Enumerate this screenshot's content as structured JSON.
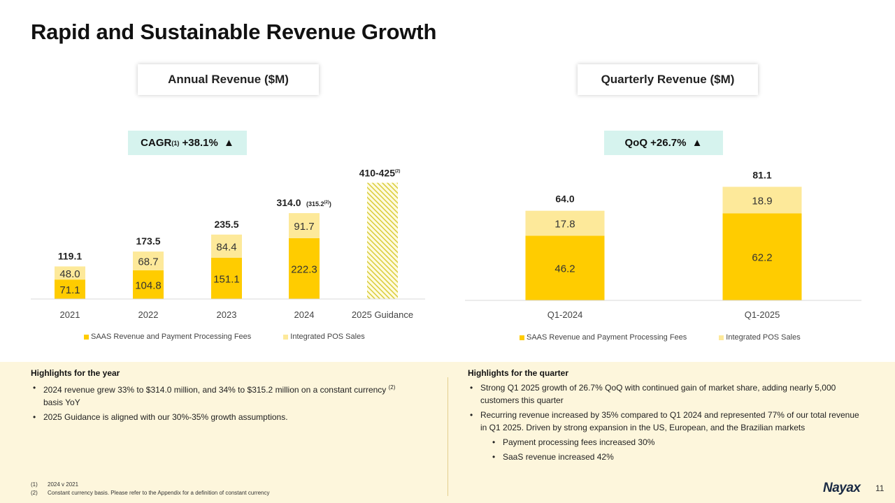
{
  "slide": {
    "title": "Rapid and Sustainable Revenue Growth",
    "page_number": "11",
    "logo_text": "Nayax"
  },
  "annual": {
    "label": "Annual Revenue ($M)",
    "badge": {
      "prefix": "CAGR",
      "sup": "(1)",
      "value": " +38.1% ",
      "arrow": "▲"
    },
    "notes": {
      "2024_extra": "(315.2",
      "2024_extra_sup": "(2)",
      "2024_extra_close": ")",
      "guidance_sup": "(2)"
    }
  },
  "quarterly": {
    "label": "Quarterly Revenue ($M)",
    "badge": {
      "text": "QoQ +26.7% ",
      "arrow": "▲"
    }
  },
  "colors": {
    "saas": "#FFCC00",
    "pos": "#FDE99A",
    "guidance_hatch": "#d9cc3a",
    "badge_bg": "#d6f3ee",
    "panel_bg": "#fdf6dc"
  },
  "chart_data": [
    {
      "type": "bar",
      "stacked": true,
      "categories": [
        "2021",
        "2022",
        "2023",
        "2024",
        "2025 Guidance"
      ],
      "series": [
        {
          "name": "SAAS Revenue and Payment Processing Fees",
          "values": [
            71.1,
            104.8,
            151.1,
            222.3,
            null
          ]
        },
        {
          "name": "Integrated POS Sales",
          "values": [
            48.0,
            68.7,
            84.4,
            91.7,
            null
          ]
        }
      ],
      "totals": [
        "119.1",
        "173.5",
        "235.5",
        "314.0",
        "410-425"
      ],
      "guidance_range": [
        410,
        425
      ],
      "legend": "bottom"
    },
    {
      "type": "bar",
      "stacked": true,
      "categories": [
        "Q1-2024",
        "Q1-2025"
      ],
      "series": [
        {
          "name": "SAAS Revenue and Payment Processing Fees",
          "values": [
            46.2,
            62.2
          ]
        },
        {
          "name": "Integrated POS Sales",
          "values": [
            17.8,
            18.9
          ]
        }
      ],
      "totals": [
        "64.0",
        "81.1"
      ],
      "legend": "bottom"
    }
  ],
  "highlights_year": {
    "title": "Highlights for the year",
    "item1_a": "2024 revenue grew 33% to $314.0 million, and 34% to $315.2 million on a constant currency ",
    "item1_sup": "(2)",
    "item1_b": " basis YoY",
    "item2": "2025 Guidance is aligned with our 30%-35% growth assumptions."
  },
  "highlights_quarter": {
    "title": "Highlights for the quarter",
    "items": [
      "Strong Q1 2025 growth of 26.7% QoQ with continued gain of market share, adding nearly 5,000 customers this quarter",
      "Recurring revenue increased by 35% compared to Q1 2024 and represented 77% of our total revenue in Q1 2025. Driven by strong expansion in the US, European, and the Brazilian markets"
    ],
    "sub_items": [
      "Payment processing fees increased 30%",
      "SaaS revenue increased 42%"
    ]
  },
  "footnotes": [
    {
      "num": "(1)",
      "text": "2024 v 2021"
    },
    {
      "num": "(2)",
      "text": "Constant currency basis. Please refer to the Appendix for a definition of constant currency"
    }
  ]
}
